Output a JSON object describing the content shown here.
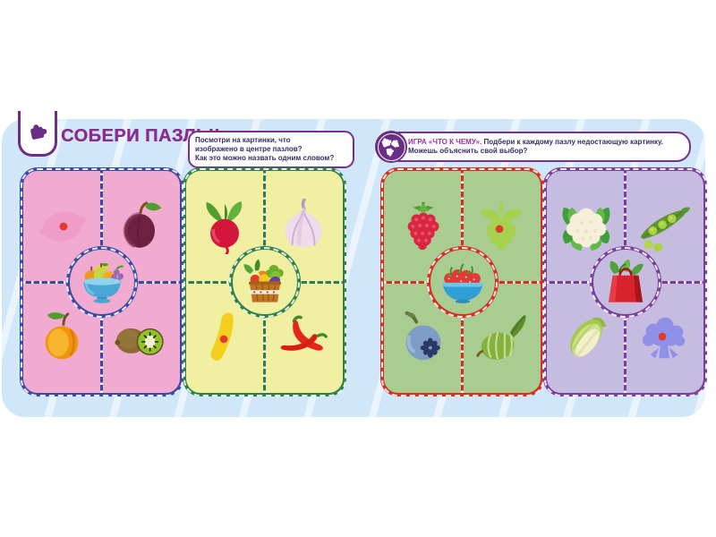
{
  "theme": {
    "sheet": "#cfe7f8",
    "title": "#8a2b8f",
    "box-border": "#7a2f8f",
    "text": "#3a2b63",
    "lead": "#a0309b",
    "icon-purple": "#6b2e86",
    "placeholder-dot": "#e23a2c"
  },
  "header": {
    "title": "СОБЕРИ ПАЗЛЫ!",
    "tab_icon": "puzzle-piece-icon",
    "left_instruction": {
      "lines": [
        "Посмотри на картинки, что",
        "изображено в центре пазлов?",
        "Как это можно назвать одним словом?"
      ]
    },
    "right_instruction": {
      "icon": "puzzle-cluster-icon",
      "lead": "ИГРА «ЧТО К ЧЕМУ».",
      "text": "Подбери к каждому пазлу недостающую картинку. Можешь объяснить свой выбор?"
    }
  },
  "panels": [
    {
      "id": "fruits-pink",
      "bg": "#f2abd0",
      "border": "#3b4aa0",
      "center": {
        "icon": "fruit-bowl"
      },
      "items": [
        {
          "pos": "top-left",
          "icon": "lemon-silhouette",
          "placeholder": true
        },
        {
          "pos": "top-right",
          "icon": "plum",
          "placeholder": false
        },
        {
          "pos": "bottom-left",
          "icon": "apricot",
          "placeholder": false
        },
        {
          "pos": "bottom-right",
          "icon": "kiwi",
          "placeholder": false
        }
      ]
    },
    {
      "id": "vegetables-yellow",
      "bg": "#f1efa2",
      "border": "#2e8048",
      "center": {
        "icon": "veg-basket"
      },
      "items": [
        {
          "pos": "top-left",
          "icon": "radish",
          "placeholder": false
        },
        {
          "pos": "top-right",
          "icon": "garlic",
          "placeholder": false
        },
        {
          "pos": "bottom-left",
          "icon": "squash-silhouette",
          "placeholder": true
        },
        {
          "pos": "bottom-right",
          "icon": "chili-peppers",
          "placeholder": false
        }
      ]
    },
    {
      "id": "berries-green",
      "bg": "#a9cc90",
      "border": "#d52f22",
      "center": {
        "icon": "strawberry-bowl"
      },
      "items": [
        {
          "pos": "top-left",
          "icon": "raspberry",
          "placeholder": false
        },
        {
          "pos": "top-right",
          "icon": "berry-silhouette",
          "placeholder": true
        },
        {
          "pos": "bottom-left",
          "icon": "blueberry",
          "placeholder": false
        },
        {
          "pos": "bottom-right",
          "icon": "gooseberry",
          "placeholder": false
        }
      ]
    },
    {
      "id": "vegetables-purple",
      "bg": "#c6bcdf",
      "border": "#7a3f9d",
      "center": {
        "icon": "shopping-bag"
      },
      "items": [
        {
          "pos": "top-left",
          "icon": "cauliflower",
          "placeholder": false
        },
        {
          "pos": "top-right",
          "icon": "pea-pod",
          "placeholder": false
        },
        {
          "pos": "bottom-left",
          "icon": "napa-cabbage",
          "placeholder": false
        },
        {
          "pos": "bottom-right",
          "icon": "broccoli-silhouette",
          "placeholder": true
        }
      ]
    }
  ]
}
